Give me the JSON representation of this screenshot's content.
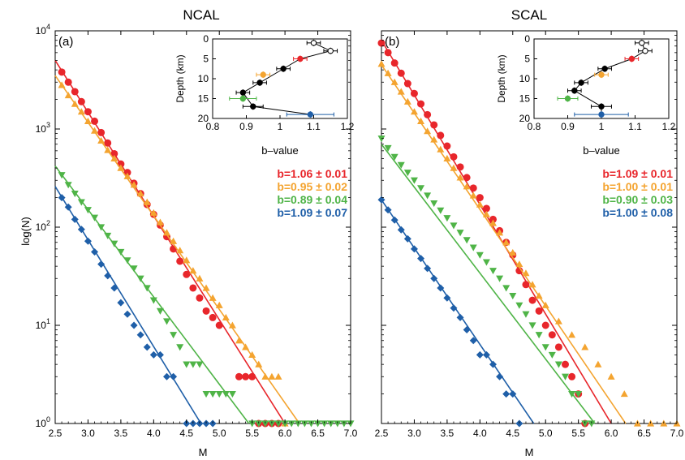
{
  "colors": {
    "red": "#e8262b",
    "orange": "#f4a430",
    "green": "#4fb447",
    "blue": "#1f5fa8",
    "axis": "#000000"
  },
  "chart_data": [
    {
      "type": "scatter",
      "title": "NCAL",
      "panel_label": "(a)",
      "xlabel": "M",
      "ylabel": "log(N)",
      "x_range": [
        2.5,
        7.0
      ],
      "y_scale": "log",
      "y_range": [
        1,
        10000
      ],
      "x_ticks": [
        "2.5",
        "3.0",
        "3.5",
        "4.0",
        "4.5",
        "5.0",
        "5.5",
        "6.0",
        "6.5",
        "7.0"
      ],
      "y_ticks": [
        "10^0",
        "10^1",
        "10^2",
        "10^3",
        "10^4"
      ],
      "legend_position": "right",
      "series": [
        {
          "color_key": "red",
          "marker": "circle",
          "b_label": "b=1.06 ± 0.01",
          "fit": {
            "x": [
              2.5,
              6.0
            ],
            "y": [
              5000,
              1
            ]
          },
          "x": [
            2.6,
            2.7,
            2.8,
            2.9,
            3.0,
            3.1,
            3.2,
            3.3,
            3.4,
            3.5,
            3.6,
            3.7,
            3.8,
            3.9,
            4.0,
            4.1,
            4.2,
            4.3,
            4.4,
            4.5,
            4.6,
            4.7,
            4.8,
            4.9,
            5.0,
            5.3,
            5.4,
            5.5,
            5.6,
            5.7,
            5.8,
            5.9
          ],
          "y": [
            3800,
            3000,
            2400,
            1900,
            1500,
            1200,
            920,
            720,
            560,
            440,
            360,
            280,
            220,
            170,
            135,
            105,
            80,
            60,
            45,
            33,
            24,
            19,
            14,
            12,
            10,
            3,
            3,
            3,
            1,
            1,
            1,
            1
          ]
        },
        {
          "color_key": "orange",
          "marker": "triangle-up",
          "b_label": "b=0.95 ± 0.02",
          "fit": {
            "x": [
              2.5,
              6.22
            ],
            "y": [
              3500,
              1
            ]
          },
          "x": [
            2.6,
            2.7,
            2.8,
            2.9,
            3.0,
            3.1,
            3.2,
            3.3,
            3.4,
            3.5,
            3.6,
            3.7,
            3.8,
            3.9,
            4.0,
            4.1,
            4.2,
            4.3,
            4.4,
            4.5,
            4.6,
            4.7,
            4.8,
            4.9,
            5.0,
            5.1,
            5.2,
            5.3,
            5.4,
            5.5,
            5.6,
            5.7,
            5.8,
            5.9,
            6.0
          ],
          "y": [
            2800,
            2200,
            1800,
            1500,
            1200,
            960,
            760,
            610,
            500,
            400,
            330,
            270,
            220,
            180,
            140,
            112,
            88,
            72,
            58,
            46,
            36,
            30,
            24,
            19,
            16,
            12,
            10,
            7,
            6,
            5,
            4,
            3,
            3,
            3,
            1
          ]
        },
        {
          "color_key": "green",
          "marker": "triangle-down",
          "b_label": "b=0.89 ± 0.04",
          "fit": {
            "x": [
              2.5,
              5.45
            ],
            "y": [
              420,
              1
            ]
          },
          "x": [
            2.6,
            2.7,
            2.8,
            2.9,
            3.0,
            3.1,
            3.2,
            3.3,
            3.4,
            3.5,
            3.6,
            3.7,
            3.8,
            3.9,
            4.0,
            4.1,
            4.2,
            4.3,
            4.4,
            4.5,
            4.6,
            4.7,
            4.8,
            4.9,
            5.0,
            5.1,
            5.2,
            5.5,
            5.6,
            5.7,
            5.8,
            5.9,
            6.0,
            6.1,
            6.2,
            6.3,
            6.4,
            6.5,
            6.6,
            6.7,
            6.8,
            6.9,
            7.0
          ],
          "y": [
            340,
            270,
            220,
            180,
            150,
            125,
            100,
            82,
            68,
            56,
            46,
            38,
            30,
            24,
            18,
            14,
            11,
            8,
            6,
            4,
            4,
            4,
            2,
            2,
            2,
            2,
            2,
            1,
            1,
            1,
            1,
            1,
            1,
            1,
            1,
            1,
            1,
            1,
            1,
            1,
            1,
            1,
            1
          ]
        },
        {
          "color_key": "blue",
          "marker": "diamond",
          "b_label": "b=1.09 ± 0.07",
          "fit": {
            "x": [
              2.5,
              4.72
            ],
            "y": [
              260,
              1
            ]
          },
          "x": [
            2.6,
            2.7,
            2.8,
            2.9,
            3.0,
            3.1,
            3.2,
            3.3,
            3.4,
            3.5,
            3.6,
            3.7,
            3.8,
            3.9,
            4.0,
            4.1,
            4.2,
            4.3,
            4.5,
            4.6,
            4.7,
            4.8,
            4.9
          ],
          "y": [
            200,
            160,
            120,
            95,
            72,
            56,
            42,
            32,
            24,
            17,
            13,
            10,
            8,
            6,
            5,
            5,
            3,
            3,
            1,
            1,
            1,
            1,
            1
          ]
        }
      ],
      "inset": {
        "xlabel": "b–value",
        "ylabel": "Depth (km)",
        "x_range": [
          0.8,
          1.2
        ],
        "y_range": [
          0,
          20
        ],
        "y_inverted": true,
        "x_ticks": [
          "0.8",
          "0.9",
          "1",
          "1.1",
          "1.2"
        ],
        "y_ticks": [
          "0",
          "5",
          "10",
          "15",
          "20"
        ],
        "points": [
          {
            "b": 1.1,
            "depth": 1.0,
            "err": 0.02,
            "style": "open"
          },
          {
            "b": 1.15,
            "depth": 3.0,
            "err": 0.02,
            "style": "open"
          },
          {
            "b": 1.06,
            "depth": 5.0,
            "err": 0.02,
            "style": "red"
          },
          {
            "b": 1.01,
            "depth": 7.5,
            "err": 0.02,
            "style": "black"
          },
          {
            "b": 0.95,
            "depth": 9.0,
            "err": 0.02,
            "style": "orange"
          },
          {
            "b": 0.94,
            "depth": 11.0,
            "err": 0.02,
            "style": "black"
          },
          {
            "b": 0.89,
            "depth": 13.5,
            "err": 0.02,
            "style": "black"
          },
          {
            "b": 0.89,
            "depth": 15.0,
            "err": 0.04,
            "style": "green"
          },
          {
            "b": 0.92,
            "depth": 17.0,
            "err": 0.03,
            "style": "black"
          },
          {
            "b": 1.09,
            "depth": 19.0,
            "err": 0.07,
            "style": "blue"
          }
        ],
        "line_order": [
          0,
          1,
          2,
          3,
          5,
          6,
          8,
          9
        ]
      }
    },
    {
      "type": "scatter",
      "title": "SCAL",
      "panel_label": "(b)",
      "xlabel": "M",
      "ylabel": "",
      "x_range": [
        2.5,
        7.0
      ],
      "y_scale": "log",
      "y_range": [
        1,
        10000
      ],
      "x_ticks": [
        "2.5",
        "3.0",
        "3.5",
        "4.0",
        "4.5",
        "5.0",
        "5.5",
        "6.0",
        "6.5",
        "7.0"
      ],
      "legend_position": "right",
      "series": [
        {
          "color_key": "red",
          "marker": "circle",
          "b_label": "b=1.09 ± 0.01",
          "fit": {
            "x": [
              2.5,
              6.0
            ],
            "y": [
              8000,
              1
            ]
          },
          "x": [
            2.5,
            2.6,
            2.7,
            2.8,
            2.9,
            3.0,
            3.1,
            3.2,
            3.3,
            3.4,
            3.5,
            3.6,
            3.7,
            3.8,
            3.9,
            4.0,
            4.1,
            4.2,
            4.3,
            4.4,
            4.5,
            4.6,
            4.7,
            4.8,
            4.9,
            5.0,
            5.1,
            5.2,
            5.3,
            5.4,
            5.5,
            5.6
          ],
          "y": [
            7500,
            6000,
            4700,
            3700,
            2900,
            2300,
            1800,
            1400,
            1100,
            860,
            670,
            520,
            410,
            320,
            250,
            200,
            155,
            120,
            92,
            70,
            52,
            36,
            26,
            18,
            14,
            10,
            8,
            6,
            4,
            3,
            2,
            1
          ]
        },
        {
          "color_key": "orange",
          "marker": "triangle-up",
          "b_label": "b=1.00 ± 0.01",
          "fit": {
            "x": [
              2.5,
              6.22
            ],
            "y": [
              4500,
              1
            ]
          },
          "x": [
            2.5,
            2.6,
            2.7,
            2.8,
            2.9,
            3.0,
            3.1,
            3.2,
            3.3,
            3.4,
            3.5,
            3.6,
            3.7,
            3.8,
            3.9,
            4.0,
            4.1,
            4.2,
            4.3,
            4.4,
            4.5,
            4.6,
            4.7,
            4.8,
            4.9,
            5.0,
            5.2,
            5.4,
            5.6,
            5.8,
            6.0,
            6.2,
            6.4,
            6.6,
            6.8,
            7.0
          ],
          "y": [
            4600,
            3700,
            3000,
            2400,
            1900,
            1500,
            1200,
            950,
            780,
            620,
            500,
            400,
            320,
            260,
            210,
            170,
            135,
            110,
            88,
            70,
            55,
            42,
            34,
            26,
            20,
            16,
            11,
            8,
            6,
            4,
            3,
            2,
            1,
            1,
            1,
            1
          ]
        },
        {
          "color_key": "green",
          "marker": "triangle-down",
          "b_label": "b=0.90 ± 0.03",
          "fit": {
            "x": [
              2.5,
              5.75
            ],
            "y": [
              700,
              1
            ]
          },
          "x": [
            2.5,
            2.6,
            2.7,
            2.8,
            2.9,
            3.0,
            3.1,
            3.2,
            3.3,
            3.4,
            3.5,
            3.6,
            3.7,
            3.8,
            3.9,
            4.0,
            4.1,
            4.2,
            4.3,
            4.4,
            4.5,
            4.6,
            4.7,
            4.8,
            4.9,
            5.0,
            5.1,
            5.2,
            5.3,
            5.4,
            5.5,
            5.6,
            5.7
          ],
          "y": [
            800,
            640,
            520,
            430,
            360,
            300,
            250,
            210,
            175,
            148,
            124,
            104,
            88,
            74,
            62,
            52,
            44,
            36,
            30,
            24,
            20,
            16,
            13,
            10,
            8,
            6,
            5,
            4,
            3,
            2,
            2,
            1,
            1
          ]
        },
        {
          "color_key": "blue",
          "marker": "diamond",
          "b_label": "b=1.00 ± 0.08",
          "fit": {
            "x": [
              2.5,
              4.82
            ],
            "y": [
              190,
              1
            ]
          },
          "x": [
            2.5,
            2.6,
            2.7,
            2.8,
            2.9,
            3.0,
            3.1,
            3.2,
            3.3,
            3.4,
            3.5,
            3.6,
            3.7,
            3.8,
            3.9,
            4.0,
            4.1,
            4.2,
            4.3,
            4.4,
            4.5,
            4.6
          ],
          "y": [
            190,
            150,
            118,
            94,
            76,
            60,
            48,
            38,
            30,
            24,
            19,
            15,
            12,
            9,
            7,
            5,
            5,
            4,
            3,
            2,
            2,
            1
          ]
        }
      ],
      "inset": {
        "xlabel": "b–value",
        "ylabel": "Depth (km)",
        "x_range": [
          0.8,
          1.2
        ],
        "y_range": [
          0,
          20
        ],
        "y_inverted": true,
        "x_ticks": [
          "0.8",
          "0.9",
          "1",
          "1.1",
          "1.2"
        ],
        "y_ticks": [
          "0",
          "5",
          "10",
          "15",
          "20"
        ],
        "points": [
          {
            "b": 1.12,
            "depth": 1.0,
            "err": 0.02,
            "style": "open"
          },
          {
            "b": 1.13,
            "depth": 3.0,
            "err": 0.02,
            "style": "open"
          },
          {
            "b": 1.09,
            "depth": 5.0,
            "err": 0.02,
            "style": "red"
          },
          {
            "b": 1.01,
            "depth": 7.5,
            "err": 0.02,
            "style": "black"
          },
          {
            "b": 1.0,
            "depth": 9.0,
            "err": 0.02,
            "style": "orange"
          },
          {
            "b": 0.94,
            "depth": 11.0,
            "err": 0.02,
            "style": "black"
          },
          {
            "b": 0.92,
            "depth": 13.0,
            "err": 0.02,
            "style": "black"
          },
          {
            "b": 0.9,
            "depth": 15.0,
            "err": 0.03,
            "style": "green"
          },
          {
            "b": 1.0,
            "depth": 17.0,
            "err": 0.03,
            "style": "black"
          },
          {
            "b": 1.0,
            "depth": 19.0,
            "err": 0.08,
            "style": "blue"
          }
        ],
        "line_order": [
          0,
          1,
          2,
          3,
          5,
          6,
          8,
          9
        ]
      }
    }
  ]
}
